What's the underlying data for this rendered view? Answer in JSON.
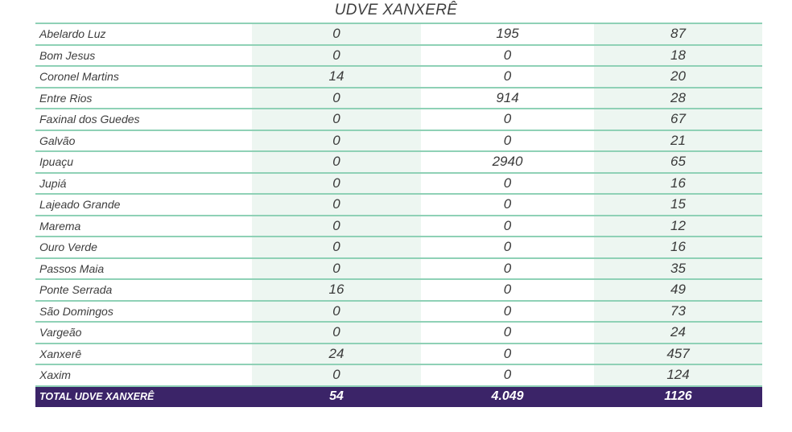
{
  "title": "UDVE XANXERÊ",
  "rows": [
    {
      "name": "Abelardo Luz",
      "v1": "0",
      "v2": "195",
      "v3": "87"
    },
    {
      "name": "Bom Jesus",
      "v1": "0",
      "v2": "0",
      "v3": "18"
    },
    {
      "name": "Coronel Martins",
      "v1": "14",
      "v2": "0",
      "v3": "20"
    },
    {
      "name": "Entre Rios",
      "v1": "0",
      "v2": "914",
      "v3": "28"
    },
    {
      "name": "Faxinal dos Guedes",
      "v1": "0",
      "v2": "0",
      "v3": "67"
    },
    {
      "name": "Galvão",
      "v1": "0",
      "v2": "0",
      "v3": "21"
    },
    {
      "name": "Ipuaçu",
      "v1": "0",
      "v2": "2940",
      "v3": "65"
    },
    {
      "name": "Jupiá",
      "v1": "0",
      "v2": "0",
      "v3": "16"
    },
    {
      "name": "Lajeado Grande",
      "v1": "0",
      "v2": "0",
      "v3": "15"
    },
    {
      "name": "Marema",
      "v1": "0",
      "v2": "0",
      "v3": "12"
    },
    {
      "name": "Ouro Verde",
      "v1": "0",
      "v2": "0",
      "v3": "16"
    },
    {
      "name": "Passos Maia",
      "v1": "0",
      "v2": "0",
      "v3": "35"
    },
    {
      "name": "Ponte Serrada",
      "v1": "16",
      "v2": "0",
      "v3": "49"
    },
    {
      "name": "São Domingos",
      "v1": "0",
      "v2": "0",
      "v3": "73"
    },
    {
      "name": "Vargeão",
      "v1": "0",
      "v2": "0",
      "v3": "24"
    },
    {
      "name": "Xanxerê",
      "v1": "24",
      "v2": "0",
      "v3": "457"
    },
    {
      "name": "Xaxim",
      "v1": "0",
      "v2": "0",
      "v3": "124"
    }
  ],
  "total": {
    "name": "TOTAL UDVE XANXERÊ",
    "v1": "54",
    "v2": "4.049",
    "v3": "1126"
  },
  "colors": {
    "row_divider": "#8fd1b6",
    "shaded_column": "#edf6f1",
    "total_background": "#3b2468",
    "total_text": "#ffffff"
  }
}
